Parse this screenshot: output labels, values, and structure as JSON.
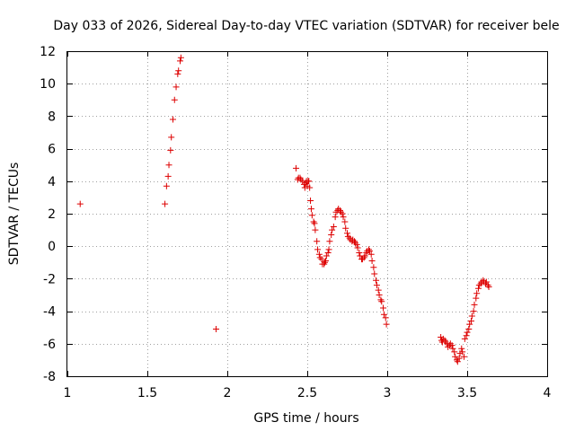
{
  "chart_data": {
    "type": "scatter",
    "title": "Day 033 of 2026, Sidereal Day-to-day VTEC variation (SDTVAR) for receiver bele",
    "xlabel": "GPS time / hours",
    "ylabel": "SDTVAR / TECUs",
    "xlim": [
      1,
      4
    ],
    "ylim": [
      -8,
      12
    ],
    "xticks": [
      "1",
      "1.5",
      "2",
      "2.5",
      "3",
      "3.5",
      "4"
    ],
    "xtick_values": [
      1,
      1.5,
      2,
      2.5,
      3,
      3.5,
      4
    ],
    "yticks": [
      "12",
      "10",
      "8",
      "6",
      "4",
      "2",
      "0",
      "-2",
      "-4",
      "-6",
      "-8"
    ],
    "ytick_values": [
      12,
      10,
      8,
      6,
      4,
      2,
      0,
      -2,
      -4,
      -6,
      -8
    ],
    "grid": true,
    "marker": "+",
    "color": "#dd0000",
    "series": [
      {
        "name": "SDTVAR",
        "points": [
          [
            1.08,
            2.6
          ],
          [
            1.61,
            2.6
          ],
          [
            1.62,
            3.7
          ],
          [
            1.63,
            4.3
          ],
          [
            1.635,
            5.0
          ],
          [
            1.645,
            5.9
          ],
          [
            1.65,
            6.7
          ],
          [
            1.66,
            7.8
          ],
          [
            1.67,
            9.0
          ],
          [
            1.68,
            9.8
          ],
          [
            1.69,
            10.6
          ],
          [
            1.695,
            10.8
          ],
          [
            1.705,
            11.4
          ],
          [
            1.71,
            11.6
          ],
          [
            1.93,
            -5.1
          ],
          [
            2.43,
            4.8
          ],
          [
            2.44,
            4.1
          ],
          [
            2.445,
            4.2
          ],
          [
            2.455,
            4.2
          ],
          [
            2.46,
            4.1
          ],
          [
            2.47,
            4.0
          ],
          [
            2.48,
            3.8
          ],
          [
            2.485,
            3.6
          ],
          [
            2.49,
            3.9
          ],
          [
            2.495,
            4.0
          ],
          [
            2.5,
            3.7
          ],
          [
            2.505,
            4.0
          ],
          [
            2.51,
            4.0
          ],
          [
            2.515,
            3.6
          ],
          [
            2.52,
            2.8
          ],
          [
            2.525,
            2.3
          ],
          [
            2.53,
            1.9
          ],
          [
            2.54,
            1.5
          ],
          [
            2.545,
            1.4
          ],
          [
            2.55,
            1.0
          ],
          [
            2.56,
            0.3
          ],
          [
            2.565,
            -0.2
          ],
          [
            2.575,
            -0.5
          ],
          [
            2.58,
            -0.7
          ],
          [
            2.59,
            -0.8
          ],
          [
            2.595,
            -1.1
          ],
          [
            2.605,
            -1.1
          ],
          [
            2.61,
            -1.0
          ],
          [
            2.615,
            -0.9
          ],
          [
            2.62,
            -0.6
          ],
          [
            2.63,
            -0.4
          ],
          [
            2.635,
            -0.2
          ],
          [
            2.64,
            0.3
          ],
          [
            2.65,
            0.7
          ],
          [
            2.655,
            1.0
          ],
          [
            2.665,
            1.2
          ],
          [
            2.675,
            1.8
          ],
          [
            2.68,
            2.1
          ],
          [
            2.69,
            2.2
          ],
          [
            2.695,
            2.3
          ],
          [
            2.705,
            2.2
          ],
          [
            2.71,
            2.1
          ],
          [
            2.72,
            2.0
          ],
          [
            2.725,
            1.8
          ],
          [
            2.735,
            1.5
          ],
          [
            2.74,
            1.1
          ],
          [
            2.75,
            0.8
          ],
          [
            2.755,
            0.6
          ],
          [
            2.765,
            0.5
          ],
          [
            2.77,
            0.4
          ],
          [
            2.78,
            0.3
          ],
          [
            2.785,
            0.4
          ],
          [
            2.795,
            0.3
          ],
          [
            2.8,
            0.2
          ],
          [
            2.81,
            0.1
          ],
          [
            2.815,
            -0.1
          ],
          [
            2.825,
            -0.4
          ],
          [
            2.83,
            -0.6
          ],
          [
            2.84,
            -0.8
          ],
          [
            2.845,
            -0.8
          ],
          [
            2.855,
            -0.7
          ],
          [
            2.86,
            -0.6
          ],
          [
            2.87,
            -0.4
          ],
          [
            2.875,
            -0.3
          ],
          [
            2.885,
            -0.2
          ],
          [
            2.89,
            -0.3
          ],
          [
            2.9,
            -0.5
          ],
          [
            2.905,
            -0.9
          ],
          [
            2.915,
            -1.3
          ],
          [
            2.92,
            -1.7
          ],
          [
            2.93,
            -2.1
          ],
          [
            2.935,
            -2.4
          ],
          [
            2.945,
            -2.7
          ],
          [
            2.95,
            -3.0
          ],
          [
            2.96,
            -3.3
          ],
          [
            2.965,
            -3.4
          ],
          [
            2.975,
            -3.8
          ],
          [
            2.98,
            -4.2
          ],
          [
            2.99,
            -4.4
          ],
          [
            2.995,
            -4.8
          ],
          [
            3.335,
            -5.6
          ],
          [
            3.34,
            -5.8
          ],
          [
            3.345,
            -5.9
          ],
          [
            3.35,
            -5.7
          ],
          [
            3.36,
            -5.8
          ],
          [
            3.365,
            -5.9
          ],
          [
            3.375,
            -6.0
          ],
          [
            3.38,
            -6.2
          ],
          [
            3.39,
            -6.1
          ],
          [
            3.395,
            -6.0
          ],
          [
            3.405,
            -6.1
          ],
          [
            3.41,
            -6.3
          ],
          [
            3.42,
            -6.5
          ],
          [
            3.425,
            -6.8
          ],
          [
            3.435,
            -7.0
          ],
          [
            3.44,
            -7.1
          ],
          [
            3.45,
            -6.9
          ],
          [
            3.455,
            -6.6
          ],
          [
            3.465,
            -6.3
          ],
          [
            3.47,
            -6.5
          ],
          [
            3.48,
            -6.8
          ],
          [
            3.485,
            -5.7
          ],
          [
            3.495,
            -5.5
          ],
          [
            3.5,
            -5.3
          ],
          [
            3.51,
            -5.1
          ],
          [
            3.515,
            -4.8
          ],
          [
            3.525,
            -4.6
          ],
          [
            3.53,
            -4.3
          ],
          [
            3.54,
            -4.0
          ],
          [
            3.545,
            -3.6
          ],
          [
            3.555,
            -3.2
          ],
          [
            3.56,
            -2.9
          ],
          [
            3.57,
            -2.6
          ],
          [
            3.575,
            -2.4
          ],
          [
            3.585,
            -2.3
          ],
          [
            3.59,
            -2.2
          ],
          [
            3.6,
            -2.1
          ],
          [
            3.605,
            -2.2
          ],
          [
            3.615,
            -2.3
          ],
          [
            3.62,
            -2.2
          ],
          [
            3.63,
            -2.4
          ],
          [
            3.635,
            -2.5
          ]
        ]
      }
    ]
  }
}
